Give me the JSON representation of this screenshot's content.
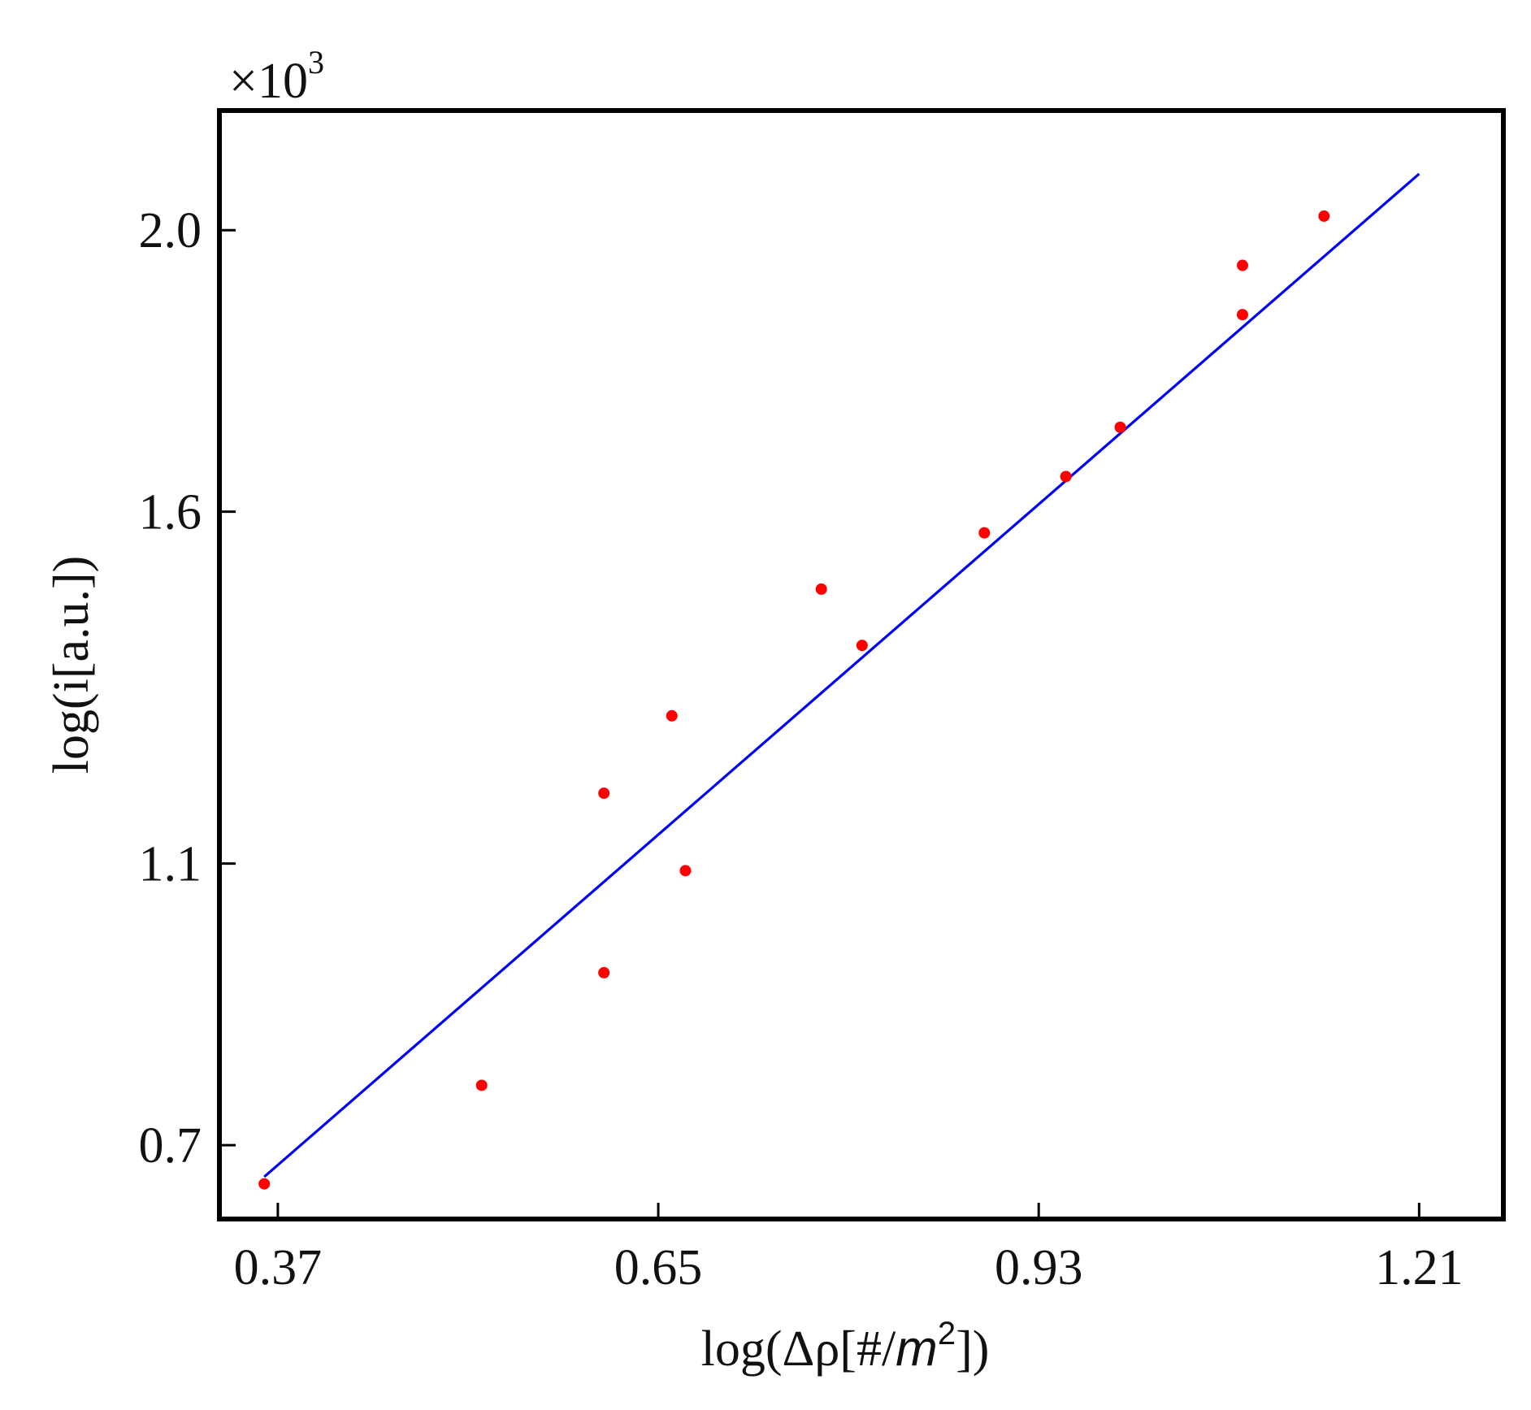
{
  "chart_data": {
    "type": "scatter",
    "xlabel_prefix": "log(Δρ[#/",
    "xlabel_unit": "m",
    "xlabel_power": "2",
    "xlabel_suffix": "])",
    "ylabel": "log(i[a.u.])",
    "multiplier_base": "×10",
    "multiplier_exp": "3",
    "x_ticks": [
      0.37,
      0.65,
      0.93,
      1.21
    ],
    "x_tick_labels": [
      "0.37",
      "0.65",
      "0.93",
      "1.21"
    ],
    "y_ticks": [
      0.7,
      1.1,
      1.6,
      2.0
    ],
    "y_tick_labels": [
      "0.7",
      "1.1",
      "1.6",
      "2.0"
    ],
    "xlim": [
      0.327,
      1.272
    ],
    "ylim": [
      0.595,
      2.17
    ],
    "grid": false,
    "colors": {
      "points": "#ff0000",
      "fit_line": "#0000ff",
      "frame": "#000000"
    },
    "series": [
      {
        "type": "scatter",
        "x": [
          0.36,
          0.52,
          0.61,
          0.67,
          0.61,
          0.66,
          0.77,
          0.8,
          0.89,
          0.95,
          0.99,
          1.08,
          1.08,
          1.14
        ],
        "y": [
          0.645,
          0.785,
          0.945,
          1.09,
          1.2,
          1.31,
          1.49,
          1.41,
          1.57,
          1.65,
          1.72,
          1.95,
          1.88,
          2.02
        ]
      },
      {
        "type": "line",
        "x": [
          0.36,
          1.21
        ],
        "y": [
          0.655,
          2.08
        ]
      }
    ]
  }
}
